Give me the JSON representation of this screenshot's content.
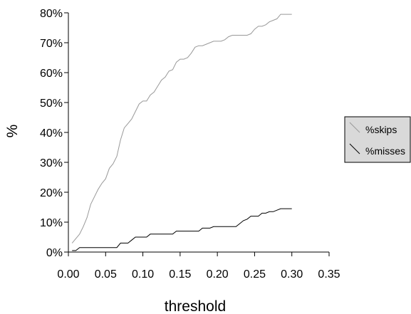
{
  "chart_data": {
    "type": "line",
    "title": "",
    "xlabel": "threshold",
    "ylabel": "%",
    "xlim": [
      0.0,
      0.35
    ],
    "ylim": [
      0,
      80
    ],
    "x_ticks": [
      "0.00",
      "0.05",
      "0.10",
      "0.15",
      "0.20",
      "0.25",
      "0.30",
      "0.35"
    ],
    "y_ticks": [
      "0%",
      "10%",
      "20%",
      "30%",
      "40%",
      "50%",
      "60%",
      "70%",
      "80%"
    ],
    "x_tick_values": [
      0.0,
      0.05,
      0.1,
      0.15,
      0.2,
      0.25,
      0.3,
      0.35
    ],
    "y_tick_values": [
      0,
      10,
      20,
      30,
      40,
      50,
      60,
      70,
      80
    ],
    "grid": false,
    "legend_position": "right",
    "series": [
      {
        "name": "%skips",
        "color": "#999999",
        "x": [
          0.005,
          0.01,
          0.015,
          0.02,
          0.025,
          0.03,
          0.035,
          0.04,
          0.045,
          0.05,
          0.055,
          0.06,
          0.065,
          0.07,
          0.075,
          0.08,
          0.085,
          0.09,
          0.095,
          0.1,
          0.105,
          0.11,
          0.115,
          0.12,
          0.125,
          0.13,
          0.135,
          0.14,
          0.145,
          0.15,
          0.155,
          0.16,
          0.165,
          0.17,
          0.175,
          0.18,
          0.185,
          0.19,
          0.195,
          0.2,
          0.205,
          0.21,
          0.215,
          0.22,
          0.225,
          0.23,
          0.235,
          0.24,
          0.245,
          0.25,
          0.255,
          0.26,
          0.265,
          0.27,
          0.275,
          0.28,
          0.285,
          0.29,
          0.295,
          0.3
        ],
        "values": [
          3,
          4.5,
          6,
          8.5,
          11.5,
          16,
          18.5,
          21,
          23,
          24.5,
          28,
          29.5,
          32,
          37.5,
          41.5,
          43,
          44.5,
          47,
          49.5,
          50.5,
          50.5,
          52.5,
          53.5,
          55.5,
          57.5,
          58.5,
          60.5,
          61,
          63.5,
          64.5,
          64.5,
          65,
          66.5,
          68.5,
          69,
          69,
          69.5,
          70,
          70.5,
          70.5,
          70.5,
          71,
          72,
          72.5,
          72.5,
          72.5,
          72.5,
          72.5,
          73,
          74.5,
          75.5,
          75.5,
          76,
          77,
          77.5,
          78,
          79.5,
          79.5,
          79.5,
          79.5
        ]
      },
      {
        "name": "%misses",
        "color": "#000000",
        "x": [
          0.005,
          0.01,
          0.015,
          0.02,
          0.025,
          0.03,
          0.035,
          0.04,
          0.045,
          0.05,
          0.055,
          0.06,
          0.065,
          0.07,
          0.075,
          0.08,
          0.085,
          0.09,
          0.095,
          0.1,
          0.105,
          0.11,
          0.115,
          0.12,
          0.125,
          0.13,
          0.135,
          0.14,
          0.145,
          0.15,
          0.155,
          0.16,
          0.165,
          0.17,
          0.175,
          0.18,
          0.185,
          0.19,
          0.195,
          0.2,
          0.205,
          0.21,
          0.215,
          0.22,
          0.225,
          0.23,
          0.235,
          0.24,
          0.245,
          0.25,
          0.255,
          0.26,
          0.265,
          0.27,
          0.275,
          0.28,
          0.285,
          0.29,
          0.295,
          0.3
        ],
        "values": [
          0.5,
          0.5,
          1.5,
          1.5,
          1.5,
          1.5,
          1.5,
          1.5,
          1.5,
          1.5,
          1.5,
          1.5,
          1.5,
          3,
          3,
          3,
          4,
          5,
          5,
          5,
          5,
          6,
          6,
          6,
          6,
          6,
          6,
          6,
          7,
          7,
          7,
          7,
          7,
          7,
          7,
          8,
          8,
          8,
          8.5,
          8.5,
          8.5,
          8.5,
          8.5,
          8.5,
          8.5,
          9.5,
          10.5,
          11,
          12,
          12,
          12,
          13,
          13,
          13.5,
          13.5,
          14,
          14.5,
          14.5,
          14.5,
          14.5
        ]
      }
    ]
  }
}
